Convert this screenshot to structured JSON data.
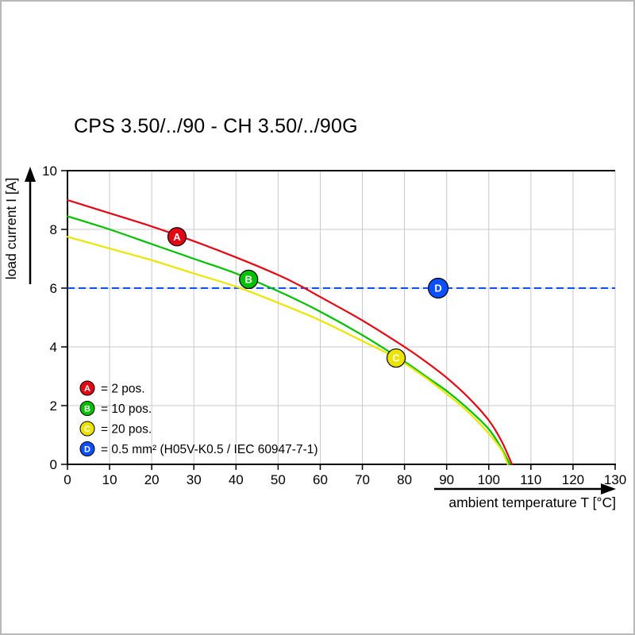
{
  "page": {
    "title": "CPS 3.50/../90 - CH 3.50/../90G"
  },
  "chart_data": {
    "type": "line",
    "title": "CPS 3.50/../90 - CH 3.50/../90G",
    "xlabel": "ambient temperature T [°C]",
    "ylabel": "load current I [A]",
    "xlim": [
      0,
      130
    ],
    "ylim": [
      0,
      10
    ],
    "xticks": [
      0,
      10,
      20,
      30,
      40,
      50,
      60,
      70,
      80,
      90,
      100,
      110,
      120,
      130
    ],
    "yticks": [
      0,
      2,
      4,
      6,
      8,
      10
    ],
    "grid": true,
    "grid_color": "#c9c9c9",
    "axis_color": "#000000",
    "legend_position": "bottom-left-inside",
    "marker_text_color": "#ffffff",
    "series": [
      {
        "id": "A",
        "label": "= 2 pos.",
        "color": "#e30613",
        "marker": {
          "x": 26,
          "y": 7.75
        },
        "points": [
          [
            0,
            9.0
          ],
          [
            10,
            8.55
          ],
          [
            20,
            8.1
          ],
          [
            30,
            7.6
          ],
          [
            40,
            7.05
          ],
          [
            50,
            6.45
          ],
          [
            55,
            6.1
          ],
          [
            60,
            5.7
          ],
          [
            70,
            4.9
          ],
          [
            80,
            4.0
          ],
          [
            85,
            3.5
          ],
          [
            90,
            2.95
          ],
          [
            95,
            2.3
          ],
          [
            100,
            1.5
          ],
          [
            103,
            0.8
          ],
          [
            105.5,
            0
          ]
        ]
      },
      {
        "id": "B",
        "label": "= 10 pos.",
        "color": "#00c000",
        "marker": {
          "x": 43,
          "y": 6.3
        },
        "points": [
          [
            0,
            8.45
          ],
          [
            10,
            8.0
          ],
          [
            20,
            7.5
          ],
          [
            30,
            7.0
          ],
          [
            40,
            6.5
          ],
          [
            50,
            5.9
          ],
          [
            60,
            5.2
          ],
          [
            70,
            4.4
          ],
          [
            80,
            3.5
          ],
          [
            85,
            3.0
          ],
          [
            90,
            2.5
          ],
          [
            95,
            1.9
          ],
          [
            100,
            1.2
          ],
          [
            103,
            0.55
          ],
          [
            105,
            0
          ]
        ]
      },
      {
        "id": "C",
        "label": "= 20 pos.",
        "color": "#ece400",
        "marker": {
          "x": 78,
          "y": 3.62
        },
        "points": [
          [
            0,
            7.75
          ],
          [
            10,
            7.35
          ],
          [
            20,
            6.95
          ],
          [
            30,
            6.5
          ],
          [
            40,
            6.05
          ],
          [
            50,
            5.5
          ],
          [
            60,
            4.9
          ],
          [
            70,
            4.2
          ],
          [
            78,
            3.62
          ],
          [
            85,
            2.95
          ],
          [
            90,
            2.4
          ],
          [
            95,
            1.8
          ],
          [
            100,
            1.05
          ],
          [
            103,
            0.5
          ],
          [
            104.5,
            0
          ]
        ]
      }
    ],
    "reference_line": {
      "id": "D",
      "y": 6,
      "style": "dashed",
      "color": "#0a50ff",
      "label": "= 0.5 mm² (H05V-K0.5 / IEC 60947-7-1)",
      "marker": {
        "x": 88,
        "y": 6
      }
    }
  }
}
